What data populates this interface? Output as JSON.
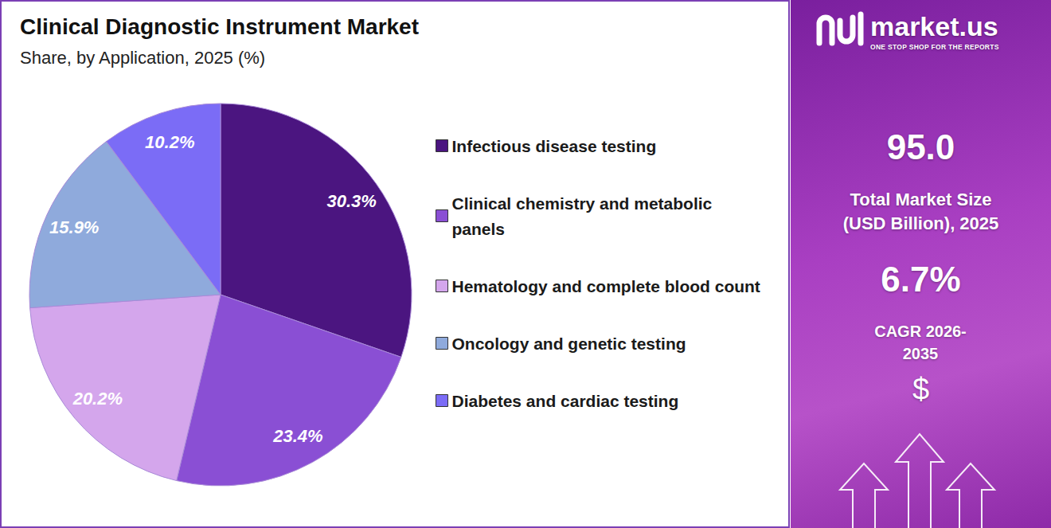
{
  "chart_data": {
    "type": "pie",
    "title": "Clinical Diagnostic Instrument Market",
    "subtitle": "Share, by Application, 2025 (%)",
    "categories": [
      "Infectious disease testing",
      "Clinical chemistry and metabolic panels",
      "Hematology and complete blood count",
      "Oncology and genetic testing",
      "Diabetes and cardiac testing"
    ],
    "values": [
      30.3,
      23.4,
      20.2,
      15.9,
      10.2
    ],
    "value_labels": [
      "30.3%",
      "23.4%",
      "20.2%",
      "15.9%",
      "10.2%"
    ],
    "colors": [
      "#4b1580",
      "#8a4fd4",
      "#d4a6ec",
      "#8faadc",
      "#7b6cf6"
    ],
    "data_labels": true,
    "legend": "right"
  },
  "panel": {
    "brand": "market.us",
    "tagline": "ONE STOP SHOP FOR THE REPORTS",
    "market_size": "95.0",
    "market_size_label": "Total Market Size (USD Billion), 2025",
    "cagr": "6.7%",
    "cagr_label": "CAGR 2026-2035",
    "currency_symbol": "$"
  }
}
